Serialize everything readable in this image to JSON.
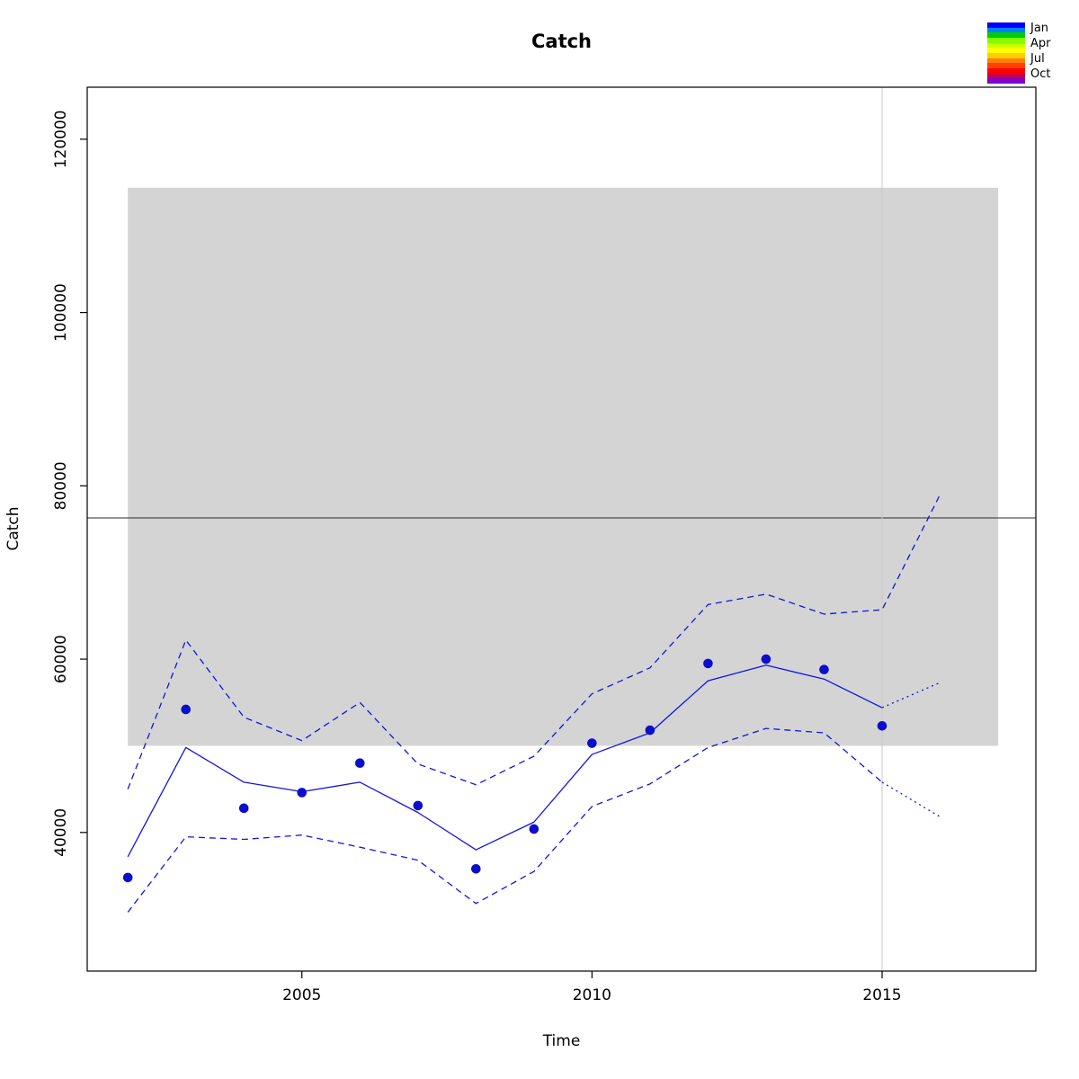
{
  "chart_data": {
    "type": "line",
    "title": "Catch",
    "xlabel": "Time",
    "ylabel": "Catch",
    "xlim": [
      2001.3,
      2017.65
    ],
    "ylim": [
      24000,
      126000
    ],
    "x_ticks": [
      2005,
      2010,
      2015
    ],
    "y_ticks": [
      40000,
      60000,
      80000,
      100000,
      120000
    ],
    "grid": false,
    "legend_position": "top-right",
    "colors": {
      "line": "#1414e0",
      "points": "#0d0dcc",
      "band": "#d4d4d4",
      "reference_line": "#2b2b2b",
      "divider": "#c9c9c9",
      "axis": "#000000"
    },
    "reference_band": {
      "x0": 2002,
      "x1": 2017,
      "y0": 50000,
      "y1": 114400
    },
    "reference_line_y": 76300,
    "vertical_line_x": 2015,
    "series": [
      {
        "name": "upper-ci",
        "type": "line",
        "style": "dashed",
        "x": [
          2002,
          2003,
          2004,
          2005,
          2006,
          2007,
          2008,
          2009,
          2010,
          2011,
          2012,
          2013,
          2014,
          2015,
          2016
        ],
        "values": [
          45000,
          62200,
          53300,
          50600,
          55000,
          47900,
          45500,
          48800,
          56000,
          59000,
          66300,
          67500,
          65200,
          65700,
          79000
        ]
      },
      {
        "name": "lower-ci",
        "type": "line",
        "style": "dashed",
        "x": [
          2002,
          2003,
          2004,
          2005,
          2006,
          2007,
          2008,
          2009,
          2010,
          2011,
          2012,
          2013,
          2014,
          2015
        ],
        "values": [
          30800,
          39500,
          39200,
          39700,
          38300,
          36800,
          31800,
          35500,
          43000,
          45600,
          49800,
          52000,
          51500,
          45800
        ]
      },
      {
        "name": "lower-ci-forecast",
        "type": "line",
        "style": "dotted",
        "x": [
          2015,
          2016
        ],
        "values": [
          45800,
          41800
        ]
      },
      {
        "name": "fit",
        "type": "line",
        "style": "solid",
        "x": [
          2002,
          2003,
          2004,
          2005,
          2006,
          2007,
          2008,
          2009,
          2010,
          2011,
          2012,
          2013,
          2014,
          2015
        ],
        "values": [
          37200,
          49800,
          45800,
          44700,
          45800,
          42300,
          38000,
          41200,
          49000,
          51500,
          57500,
          59300,
          57700,
          54400
        ]
      },
      {
        "name": "fit-forecast",
        "type": "line",
        "style": "dotted",
        "x": [
          2015,
          2016
        ],
        "values": [
          54400,
          57300
        ]
      },
      {
        "name": "observations",
        "type": "points",
        "x": [
          2002,
          2003,
          2004,
          2005,
          2006,
          2007,
          2008,
          2009,
          2010,
          2011,
          2012,
          2013,
          2014,
          2015
        ],
        "values": [
          34800,
          54200,
          42800,
          44600,
          48000,
          43100,
          35800,
          40400,
          50300,
          51800,
          59500,
          60000,
          58800,
          52300
        ]
      }
    ],
    "legend": {
      "labels": [
        "Jan",
        "Apr",
        "Jul",
        "Oct"
      ],
      "colors": [
        "#0000ff",
        "#0080ff",
        "#00cc00",
        "#80ff00",
        "#ccff00",
        "#ffff00",
        "#ffcc00",
        "#ff8000",
        "#ff4000",
        "#ff0000",
        "#cc0044",
        "#8000cc"
      ]
    }
  }
}
